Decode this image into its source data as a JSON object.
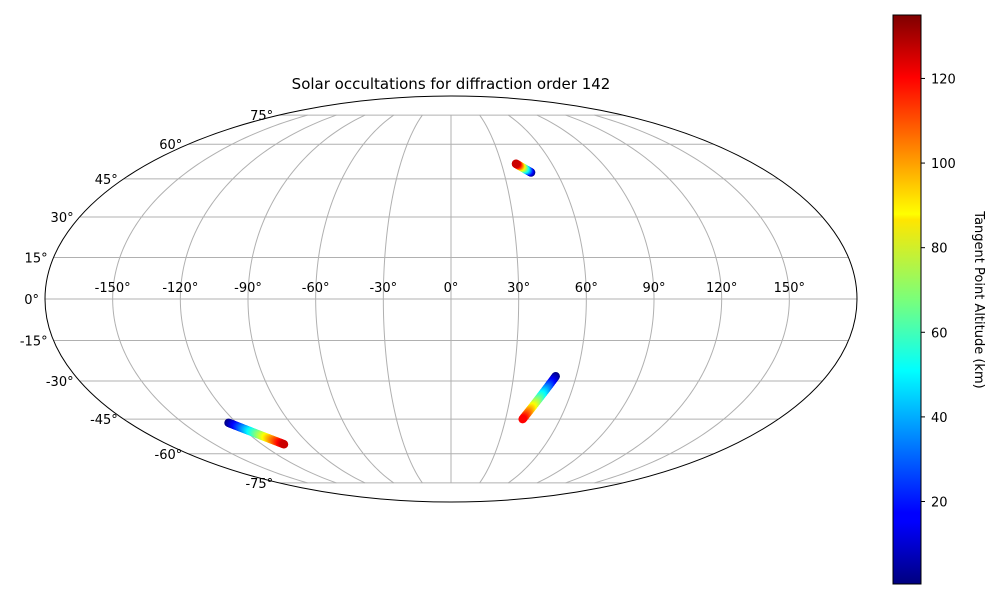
{
  "chart_data": {
    "type": "scatter",
    "projection": "mollweide",
    "title": "Solar occultations for diffraction order 142",
    "lon_ticks": [
      "-150°",
      "-120°",
      "-90°",
      "-60°",
      "-30°",
      "0°",
      "30°",
      "60°",
      "90°",
      "120°",
      "150°"
    ],
    "lat_ticks": [
      "75°",
      "60°",
      "45°",
      "30°",
      "15°",
      "0°",
      "-15°",
      "-30°",
      "-45°",
      "-60°",
      "-75°"
    ],
    "grid": true,
    "colorbar": {
      "label": "Tangent Point Altitude (km)",
      "ticks": [
        "20",
        "40",
        "60",
        "80",
        "100",
        "120"
      ],
      "range": [
        0.5,
        135
      ],
      "colormap": "jet"
    },
    "tracks": [
      {
        "lon_start": 45.4,
        "lat_start": 47.6,
        "lon_end": 38.6,
        "lat_end": 51.3,
        "alt_start": 1,
        "alt_end": 125
      },
      {
        "lon_start": 50.2,
        "lat_start": -28.2,
        "lon_end": 39.4,
        "lat_end": -45.0,
        "alt_start": 1,
        "alt_end": 118
      },
      {
        "lon_start": -124.5,
        "lat_start": -46.5,
        "lon_end": -106.0,
        "lat_end": -55.7,
        "alt_start": 1,
        "alt_end": 125
      }
    ]
  }
}
